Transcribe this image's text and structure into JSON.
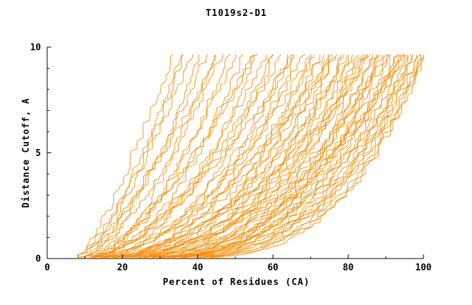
{
  "title": "T1019s2-D1",
  "chart_data": {
    "type": "line",
    "title": "T1019s2-D1",
    "xlabel": "Percent of Residues (CA)",
    "ylabel": "Distance Cutoff, A",
    "xlim": [
      0,
      100
    ],
    "ylim": [
      0,
      10
    ],
    "x_ticks": [
      0,
      20,
      40,
      60,
      80,
      100
    ],
    "x_minor_ticks": [
      10,
      30,
      50,
      70,
      90
    ],
    "y_ticks": [
      0,
      5,
      10
    ],
    "y_minor_ticks": [
      1,
      2,
      3,
      4,
      6,
      7,
      8,
      9
    ],
    "line_color": "#ff8c00",
    "axis_color": "#000000",
    "grid": false,
    "legend": "none",
    "curves_encoding": "each curve = [percent_at_cutoff_0, percent_at_cutoff_10, shape_exponent]; x(y)=s+(e-s)*(y/10)^p, monotonic rising model-accuracy curves",
    "curves": [
      [
        8,
        33,
        0.8
      ],
      [
        9,
        35,
        0.75
      ],
      [
        10,
        36,
        0.7
      ],
      [
        7,
        38,
        0.72
      ],
      [
        11,
        40,
        0.68
      ],
      [
        9,
        42,
        0.7
      ],
      [
        12,
        44,
        0.6
      ],
      [
        8,
        46,
        0.65
      ],
      [
        13,
        48,
        0.6
      ],
      [
        10,
        50,
        0.62
      ],
      [
        14,
        52,
        0.58
      ],
      [
        9,
        54,
        0.6
      ],
      [
        15,
        56,
        0.55
      ],
      [
        11,
        58,
        0.57
      ],
      [
        16,
        60,
        0.5
      ],
      [
        10,
        62,
        0.55
      ],
      [
        17,
        64,
        0.5
      ],
      [
        12,
        65,
        0.52
      ],
      [
        18,
        66,
        0.48
      ],
      [
        11,
        68,
        0.5
      ],
      [
        19,
        70,
        0.45
      ],
      [
        13,
        71,
        0.48
      ],
      [
        20,
        72,
        0.45
      ],
      [
        12,
        73,
        0.46
      ],
      [
        21,
        74,
        0.42
      ],
      [
        14,
        75,
        0.45
      ],
      [
        22,
        76,
        0.4
      ],
      [
        13,
        77,
        0.44
      ],
      [
        23,
        78,
        0.4
      ],
      [
        15,
        79,
        0.42
      ],
      [
        24,
        80,
        0.38
      ],
      [
        14,
        81,
        0.42
      ],
      [
        25,
        82,
        0.38
      ],
      [
        16,
        83,
        0.4
      ],
      [
        26,
        84,
        0.36
      ],
      [
        15,
        85,
        0.4
      ],
      [
        27,
        86,
        0.36
      ],
      [
        17,
        87,
        0.38
      ],
      [
        28,
        88,
        0.35
      ],
      [
        16,
        89,
        0.38
      ],
      [
        20,
        90,
        0.35
      ],
      [
        18,
        91,
        0.36
      ],
      [
        22,
        92,
        0.34
      ],
      [
        17,
        93,
        0.36
      ],
      [
        24,
        94,
        0.33
      ],
      [
        19,
        95,
        0.34
      ],
      [
        26,
        96,
        0.32
      ],
      [
        18,
        97,
        0.34
      ],
      [
        28,
        98,
        0.32
      ],
      [
        20,
        99,
        0.33
      ],
      [
        30,
        100,
        0.3
      ],
      [
        21,
        100,
        0.32
      ],
      [
        6,
        45,
        0.7
      ],
      [
        7,
        55,
        0.6
      ],
      [
        6,
        65,
        0.55
      ],
      [
        8,
        75,
        0.5
      ],
      [
        7,
        85,
        0.45
      ],
      [
        6,
        95,
        0.4
      ],
      [
        9,
        60,
        0.55
      ],
      [
        8,
        70,
        0.5
      ],
      [
        10,
        80,
        0.45
      ],
      [
        9,
        90,
        0.4
      ],
      [
        11,
        85,
        0.42
      ],
      [
        12,
        95,
        0.38
      ],
      [
        25,
        97,
        0.31
      ],
      [
        27,
        99,
        0.3
      ],
      [
        23,
        96,
        0.33
      ],
      [
        29,
        100,
        0.31
      ],
      [
        19,
        88,
        0.36
      ],
      [
        21,
        93,
        0.34
      ]
    ]
  }
}
